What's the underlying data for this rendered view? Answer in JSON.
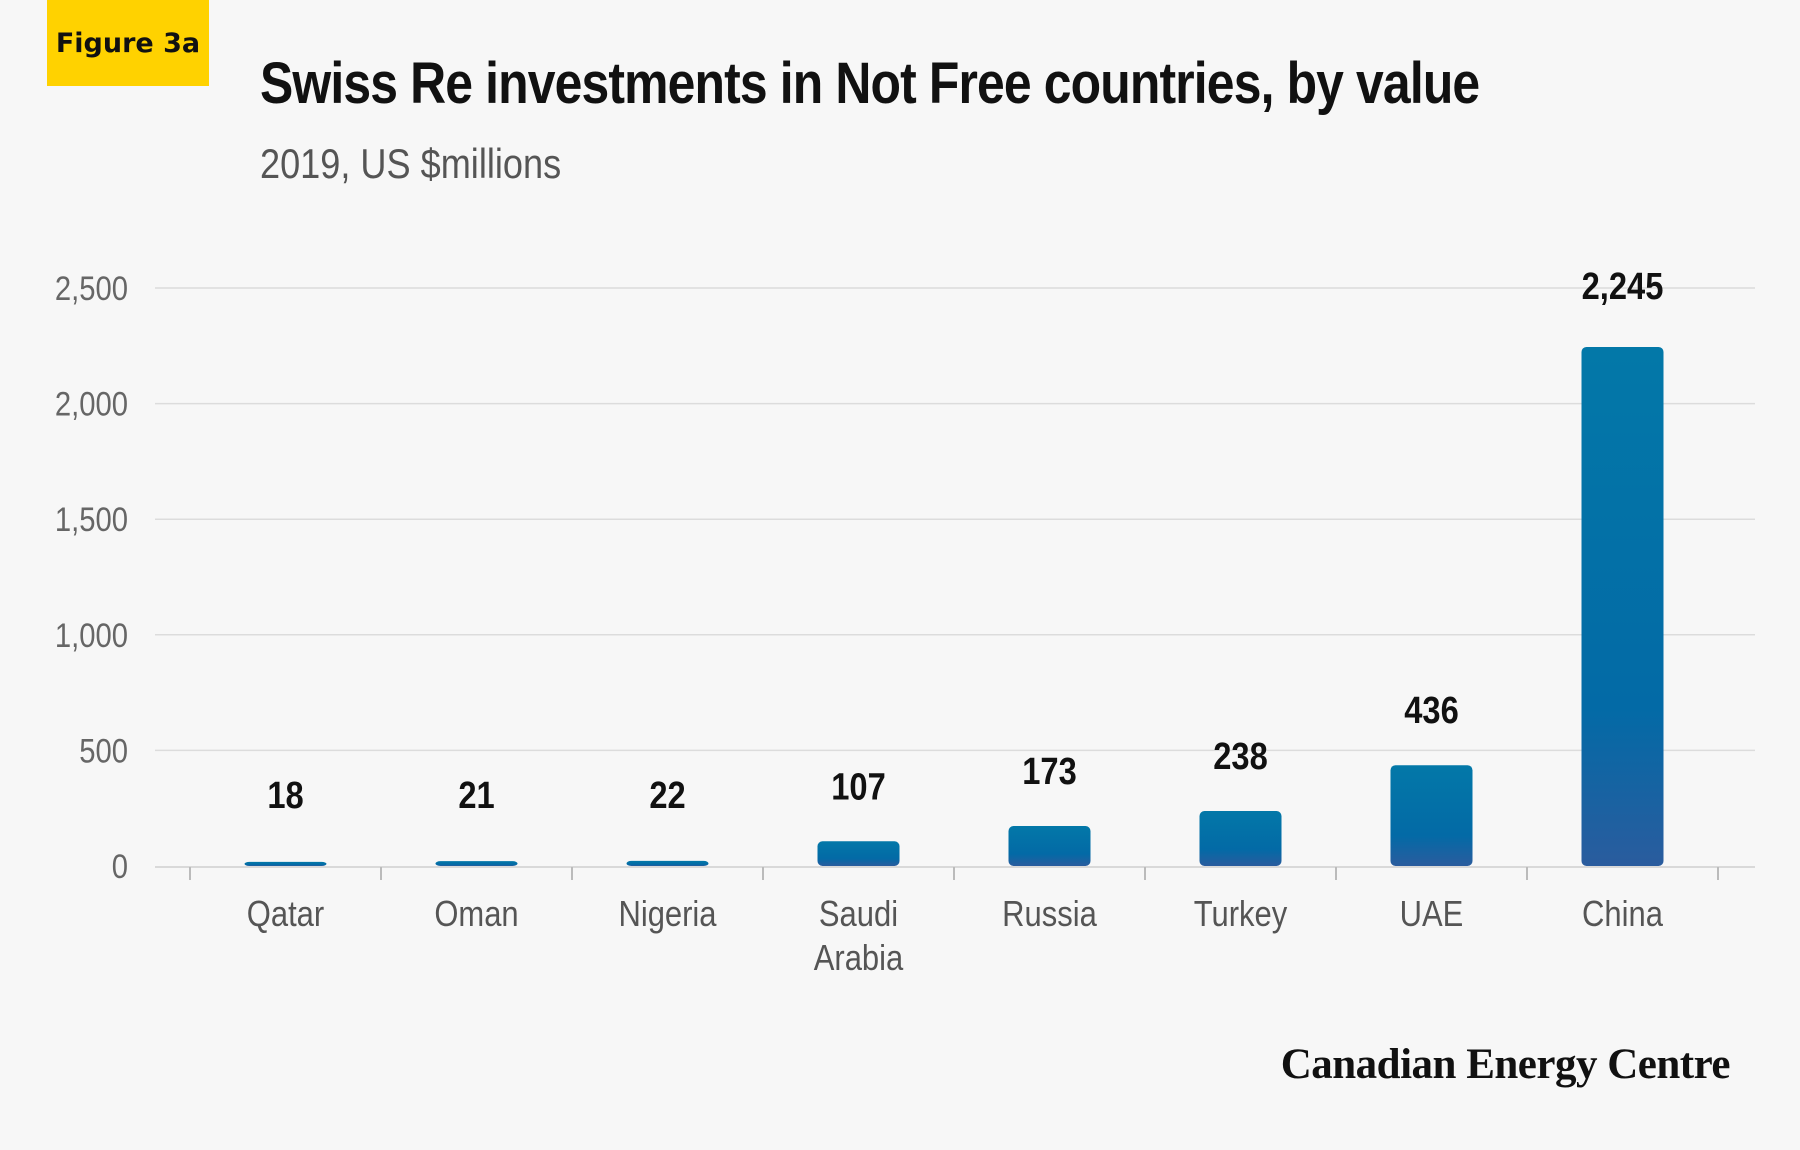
{
  "figure_label": "Figure 3a",
  "chart_title": "Swiss Re investments in Not Free countries, by value",
  "chart_subtitle": "2019, US $millions",
  "brand": "Canadian Energy Centre",
  "colors": {
    "badge": "#ffd200",
    "bar_top": "#0474a6",
    "bar_bottom": "#2a5c9e",
    "grid": "#dcdcdc"
  },
  "chart_data": {
    "type": "bar",
    "title": "Swiss Re investments in Not Free countries, by value",
    "subtitle": "2019, US $millions",
    "categories": [
      "Qatar",
      "Oman",
      "Nigeria",
      "Saudi\nArabia",
      "Russia",
      "Turkey",
      "UAE",
      "China"
    ],
    "values": [
      18,
      21,
      22,
      107,
      173,
      238,
      436,
      2245
    ],
    "value_labels": [
      "18",
      "21",
      "22",
      "107",
      "173",
      "238",
      "436",
      "2,245"
    ],
    "ylim": [
      0,
      2500
    ],
    "yticks": [
      0,
      500,
      1000,
      1500,
      2000,
      2500
    ],
    "ytick_labels": [
      "0",
      "500",
      "1,000",
      "1,500",
      "2,000",
      "2,500"
    ],
    "grid": true,
    "xlabel": "",
    "ylabel": ""
  }
}
